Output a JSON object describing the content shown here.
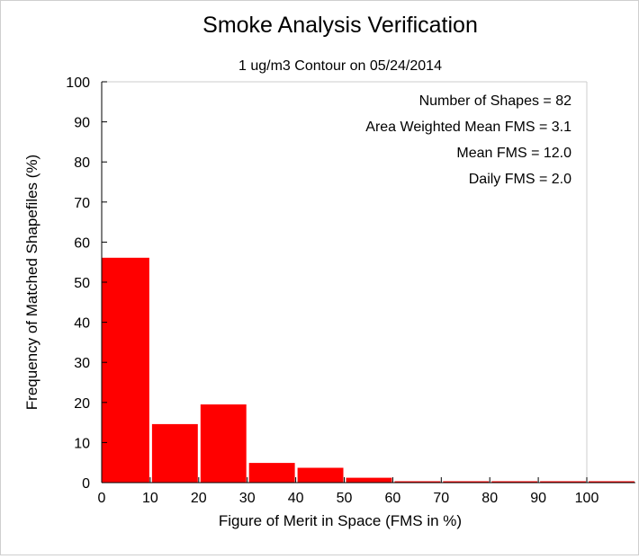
{
  "chart_data": {
    "type": "bar",
    "title": "Smoke Analysis Verification",
    "subtitle": "1 ug/m3 Contour on 05/24/2014",
    "xlabel": "Figure of Merit in Space (FMS in %)",
    "ylabel": "Frequency of Matched Shapefiles (%)",
    "xlim": [
      0,
      110
    ],
    "ylim": [
      0,
      100
    ],
    "xticks": [
      0,
      10,
      20,
      30,
      40,
      50,
      60,
      70,
      80,
      90,
      100
    ],
    "yticks": [
      0,
      10,
      20,
      30,
      40,
      50,
      60,
      70,
      80,
      90,
      100
    ],
    "bin_width": 10,
    "bins": [
      0,
      10,
      20,
      30,
      40,
      50,
      60,
      70,
      80,
      90,
      100
    ],
    "values": [
      56.1,
      14.6,
      19.5,
      4.9,
      3.7,
      1.2,
      0,
      0,
      0,
      0,
      0
    ],
    "bar_color": "#ff0000",
    "grid": false,
    "annotations": [
      "Number of Shapes = 82",
      "Area Weighted Mean FMS = 3.1",
      "Mean FMS = 12.0",
      "Daily FMS = 2.0"
    ],
    "annotation_placement": "top-right"
  }
}
